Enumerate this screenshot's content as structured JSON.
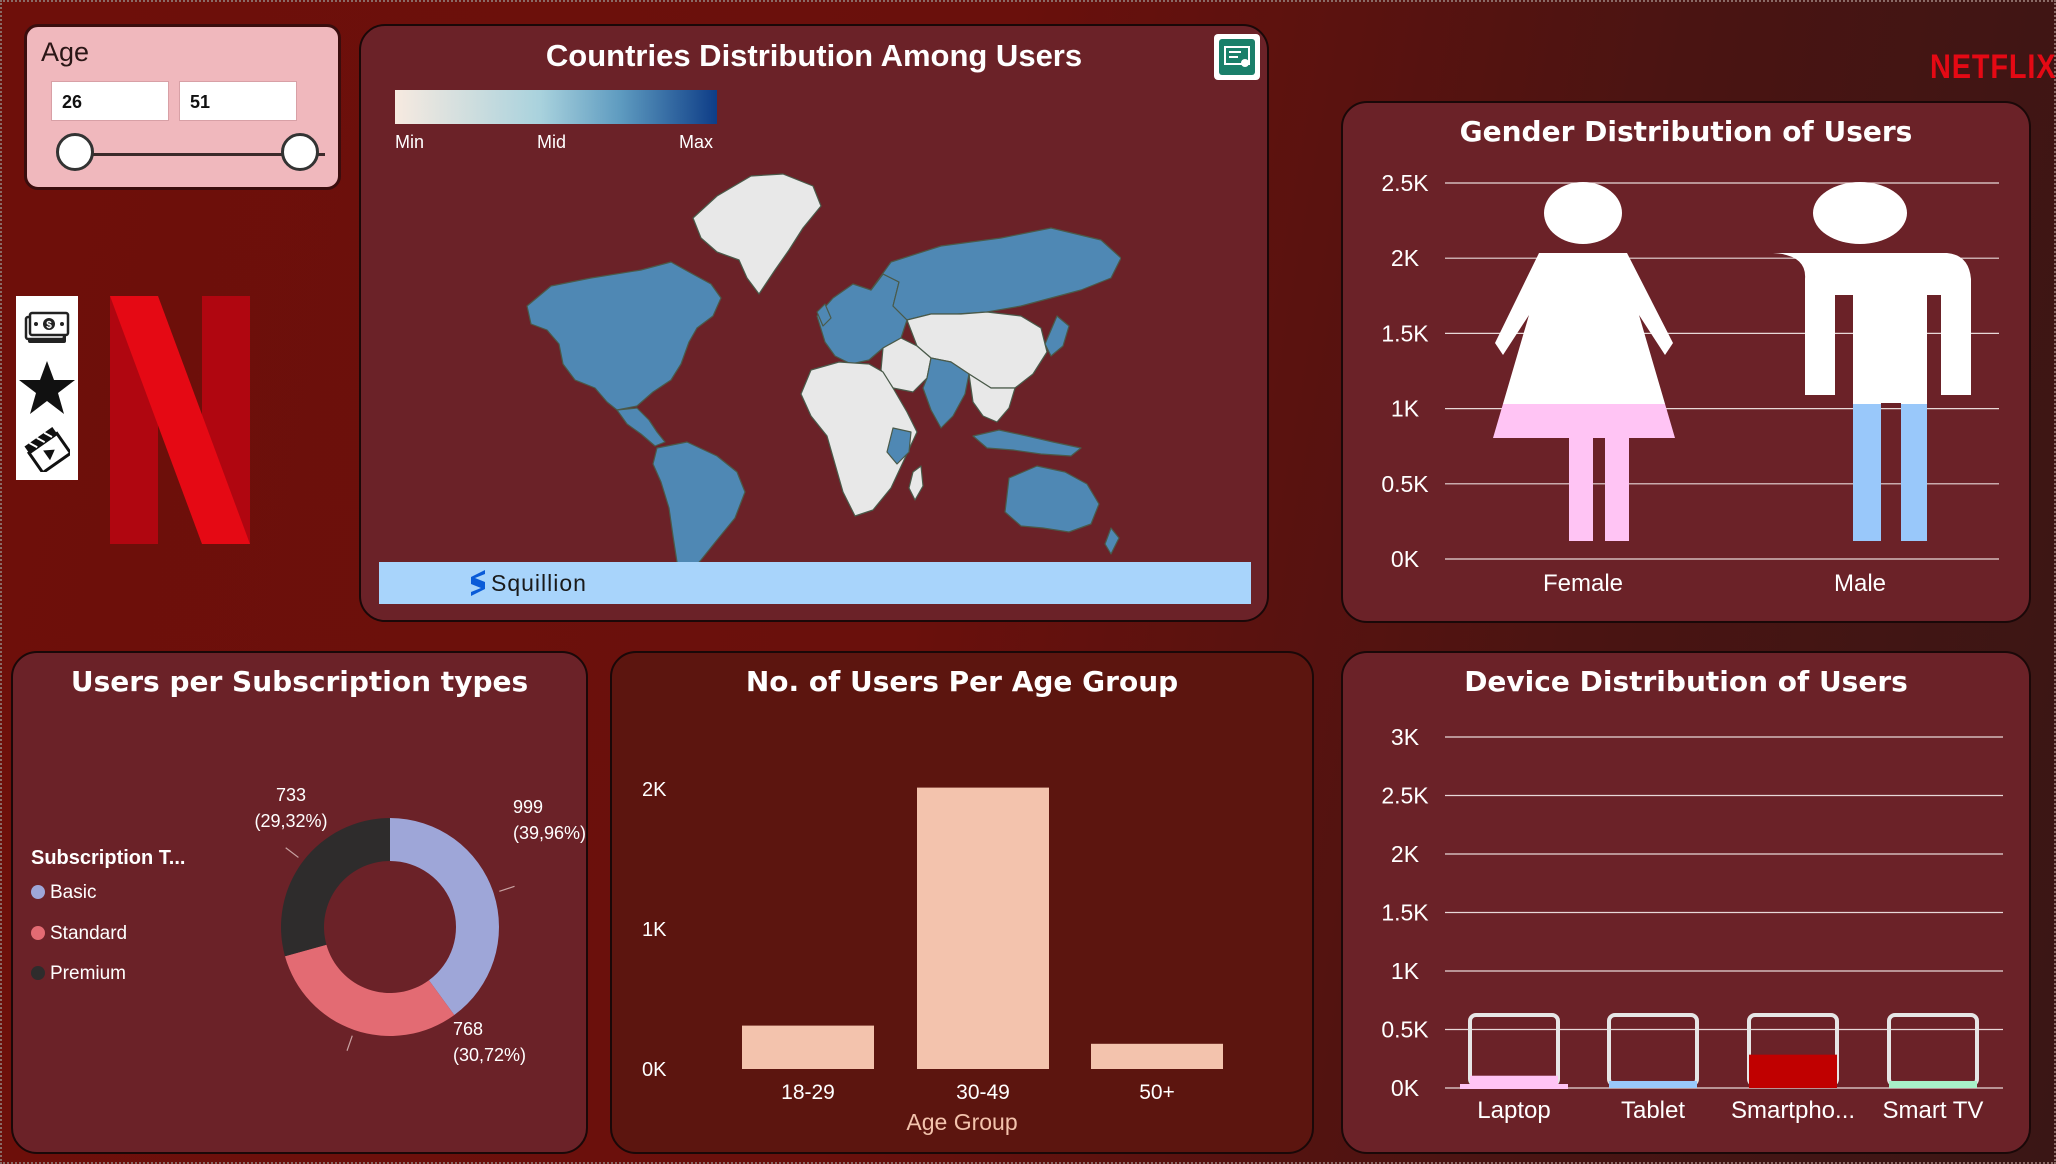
{
  "age_slicer": {
    "title": "Age",
    "min_value": "26",
    "max_value": "51"
  },
  "nav": {
    "items": [
      {
        "icon": "money-icon"
      },
      {
        "icon": "star-icon"
      },
      {
        "icon": "clapperboard-icon"
      }
    ]
  },
  "brand": {
    "wordmark": "NETFLIX",
    "color": "#e50914"
  },
  "map": {
    "title": "Countries Distribution Among Users",
    "legend": {
      "min": "Min",
      "mid": "Mid",
      "max": "Max"
    },
    "footer": "Squillion",
    "colors": {
      "with_users": "#4f88b4",
      "without_users": "#e8e8e8",
      "ocean": "#6b2228"
    }
  },
  "gender_chart": {
    "title": "Gender Distribution of Users",
    "chart_data": {
      "type": "bar",
      "title": "Gender Distribution of Users",
      "categories": [
        "Female",
        "Male"
      ],
      "values": [
        1250,
        1250
      ],
      "colors": [
        "#ffc4f4",
        "#99c8fa"
      ],
      "ylim": [
        0,
        2500
      ],
      "yticks": [
        "0K",
        "0.5K",
        "1K",
        "1.5K",
        "2K",
        "2.5K"
      ],
      "grid": true
    }
  },
  "subscription_chart": {
    "title": "Users per Subscription types",
    "legend_title": "Subscription T...",
    "chart_data": {
      "type": "pie",
      "title": "Users per Subscription types",
      "labels": [
        "Basic",
        "Standard",
        "Premium"
      ],
      "values": [
        999,
        768,
        733
      ],
      "percent_labels": [
        "(39,96%)",
        "(30,72%)",
        "(29,32%)"
      ],
      "colors": [
        "#9ea6d8",
        "#e36b73",
        "#2e2c2c"
      ]
    }
  },
  "age_group_chart": {
    "title": "No. of Users Per Age Group",
    "chart_data": {
      "type": "bar",
      "title": "No. of Users Per Age Group",
      "categories": [
        "18-29",
        "30-49",
        "50+"
      ],
      "values": [
        310,
        2010,
        180
      ],
      "xlabel": "Age Group",
      "ylim": [
        0,
        2000
      ],
      "yticks": [
        "0K",
        "1K",
        "2K"
      ],
      "color": "#f3c3ad"
    }
  },
  "device_chart": {
    "title": "Device Distribution of Users",
    "chart_data": {
      "type": "bar",
      "title": "Device Distribution of Users",
      "categories": [
        "Laptop",
        "Tablet",
        "Smartpho...",
        "Smart TV"
      ],
      "values": [
        105,
        60,
        285,
        60
      ],
      "colors": [
        "#ffc4f4",
        "#99c8fa",
        "#c00000",
        "#a8f0c8"
      ],
      "ylim": [
        0,
        3000
      ],
      "yticks": [
        "0K",
        "0.5K",
        "1K",
        "1.5K",
        "2K",
        "2.5K",
        "3K"
      ],
      "grid": true
    }
  }
}
